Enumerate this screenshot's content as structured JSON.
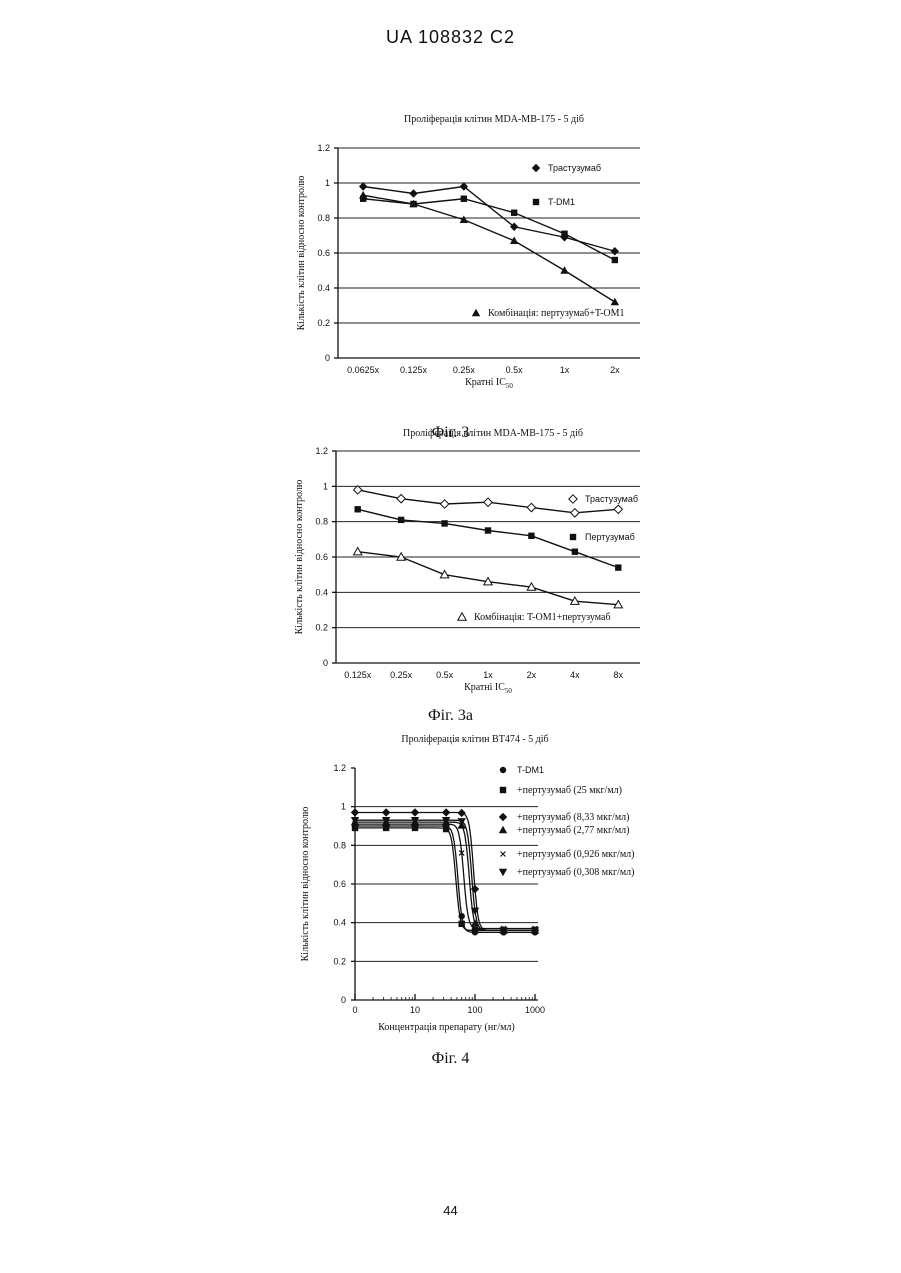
{
  "header": "UA   108832   C2",
  "page_number": "44",
  "figures": [
    {
      "caption": "Фіг. 3"
    },
    {
      "caption": "Фіг. 3а"
    },
    {
      "caption": "Фіг. 4"
    }
  ],
  "chart_data": [
    {
      "type": "line",
      "title": "Проліферація клітин MDA-MB-175 - 5 діб",
      "xlabel": "Кратні IC50",
      "ylabel": "Кількість клітин відносно контролю",
      "categories": [
        "0.0625x",
        "0.125x",
        "0.25x",
        "0.5x",
        "1x",
        "2x"
      ],
      "ylim": [
        0,
        1.2
      ],
      "yticks": [
        "0",
        "0.2",
        "0.4",
        "0.6",
        "0.8",
        "1",
        "1.2"
      ],
      "grid": true,
      "series": [
        {
          "name": "Трастузумаб",
          "marker": "diamond",
          "values": [
            0.98,
            0.94,
            0.98,
            0.75,
            0.69,
            0.61
          ]
        },
        {
          "name": "T-DM1",
          "marker": "square",
          "values": [
            0.91,
            0.88,
            0.91,
            0.83,
            0.71,
            0.56
          ]
        },
        {
          "name": "Комбінація: пертузумаб+T-OM1",
          "marker": "triangle",
          "values": [
            0.93,
            0.88,
            0.79,
            0.67,
            0.5,
            0.32
          ]
        }
      ]
    },
    {
      "type": "line",
      "title": "Проліферація клітин MDA-MB-175 - 5 діб",
      "xlabel": "Кратні IC50",
      "ylabel": "Кількість клітин відносно контролю",
      "categories": [
        "0.125x",
        "0.25x",
        "0.5x",
        "1x",
        "2x",
        "4x",
        "8x"
      ],
      "ylim": [
        0,
        1.2
      ],
      "yticks": [
        "0",
        "0.2",
        "0.4",
        "0.6",
        "0.8",
        "1",
        "1.2"
      ],
      "grid": true,
      "series": [
        {
          "name": "Трастузумаб",
          "marker": "diamond-open",
          "values": [
            0.98,
            0.93,
            0.9,
            0.91,
            0.88,
            0.85,
            0.87
          ]
        },
        {
          "name": "Пертузумаб",
          "marker": "square",
          "values": [
            0.87,
            0.81,
            0.79,
            0.75,
            0.72,
            0.63,
            0.54
          ]
        },
        {
          "name": "Комбінація: T-OM1+пертузумаб",
          "marker": "triangle-open",
          "values": [
            0.63,
            0.6,
            0.5,
            0.46,
            0.43,
            0.35,
            0.33
          ]
        }
      ]
    },
    {
      "type": "line",
      "title": "Проліферація клітин BT474 - 5 діб",
      "xlabel": "Концентрація препарату (нг/мл)",
      "ylabel": "Кількість клітин відносно контролю",
      "xticks": [
        "0",
        "10",
        "100",
        "1000"
      ],
      "xscale": "log",
      "ylim": [
        0,
        1.2
      ],
      "yticks": [
        "0",
        "0.2",
        "0.4",
        "0.6",
        "0.8",
        "1",
        "1.2"
      ],
      "grid": true,
      "series": [
        {
          "name": "T-DM1",
          "marker": "circle",
          "top": 0.9,
          "bottom": 0.35,
          "ec50": 52
        },
        {
          "name": "+пертузумаб (25 мкг/мл)",
          "marker": "square",
          "top": 0.89,
          "bottom": 0.36,
          "ec50": 48
        },
        {
          "name": "+пертузумаб (8,33 мкг/мл)",
          "marker": "diamond",
          "top": 0.97,
          "bottom": 0.36,
          "ec50": 95
        },
        {
          "name": "+пертузумаб (2,77 мкг/мл)",
          "marker": "triangle",
          "top": 0.92,
          "bottom": 0.36,
          "ec50": 80
        },
        {
          "name": "+пертузумаб (0,926 мкг/мл)",
          "marker": "x",
          "top": 0.91,
          "bottom": 0.37,
          "ec50": 65
        },
        {
          "name": "+пертузумаб (0,308 мкг/мл)",
          "marker": "triangle-down",
          "top": 0.93,
          "bottom": 0.36,
          "ec50": 88
        }
      ]
    }
  ]
}
